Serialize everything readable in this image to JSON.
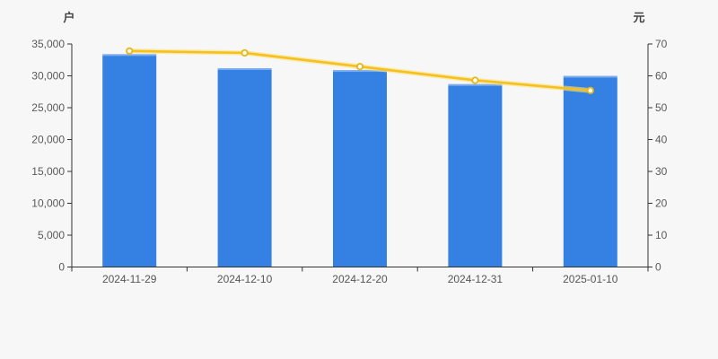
{
  "page": {
    "background_color": "#f7f7f7"
  },
  "chart_data": {
    "type": "bar",
    "subtype": "bar-with-line-overlay-dual-axis",
    "title": "",
    "legend": false,
    "grid": false,
    "categories": [
      "2024-11-29",
      "2024-12-10",
      "2024-12-20",
      "2024-12-31",
      "2025-01-10"
    ],
    "series": [
      {
        "type": "bar",
        "yaxis": "left",
        "color": "#3580e3",
        "values": [
          33400,
          31200,
          30900,
          28700,
          30000
        ]
      },
      {
        "type": "line",
        "yaxis": "right",
        "color": "#f5c020",
        "marker": "open-circle",
        "marker_fill": "#ffffff",
        "values": [
          67.8,
          67.2,
          62.9,
          58.6,
          55.4
        ]
      }
    ],
    "left_axis": {
      "name": "户",
      "min": 0,
      "max": 35000,
      "interval": 5000,
      "tick_labels": [
        "0",
        "5,000",
        "10,000",
        "15,000",
        "20,000",
        "25,000",
        "30,000",
        "35,000"
      ]
    },
    "right_axis": {
      "name": "元",
      "min": 0,
      "max": 70,
      "interval": 10,
      "tick_labels": [
        "0",
        "10",
        "20",
        "30",
        "40",
        "50",
        "60",
        "70"
      ]
    },
    "x_axis": {
      "labels": [
        "2024-11-29",
        "2024-12-10",
        "2024-12-20",
        "2024-12-31",
        "2025-01-10"
      ]
    }
  },
  "styles": {
    "background": "#f7f7f7",
    "axis_line_color": "#333333",
    "tick_label_color": "#595959",
    "x_label_color": "#555555",
    "axis_name_color": "#444444",
    "bar_color": "#3580e3",
    "bar_top_highlight": "rgba(255,255,255,0.35)",
    "line_color": "#f5c020",
    "line_halo_color": "#fbe27a",
    "marker_ring_color": "#e9b512",
    "marker_fill": "#ffffff"
  }
}
